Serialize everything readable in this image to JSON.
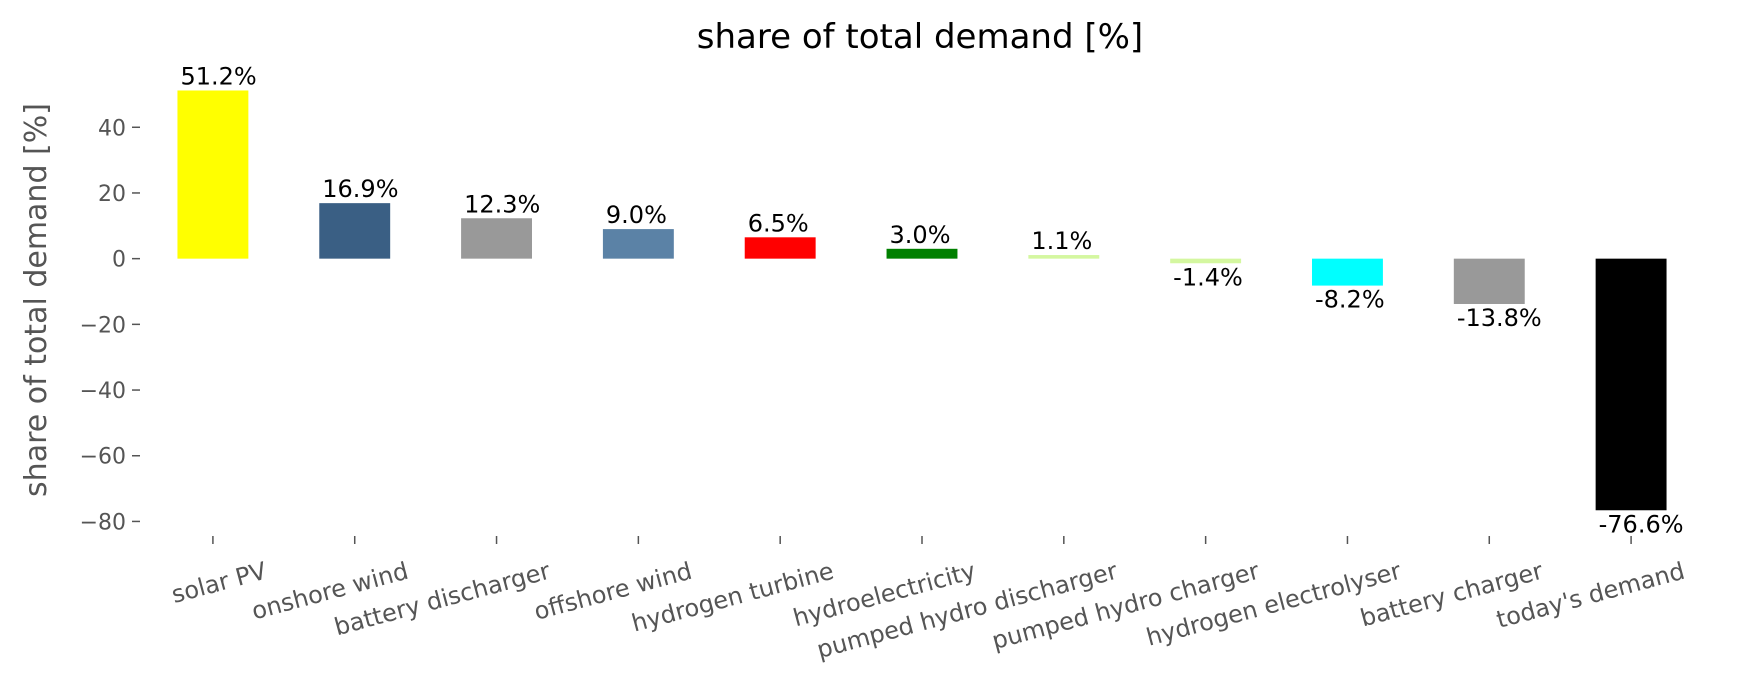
{
  "chart_data": {
    "type": "bar",
    "title": "share of total demand [%]",
    "ylabel": "share of total demand [%]",
    "categories": [
      "solar PV",
      "onshore wind",
      "battery discharger",
      "offshore wind",
      "hydrogen turbine",
      "hydroelectricity",
      "pumped hydro discharger",
      "pumped hydro charger",
      "hydrogen electrolyser",
      "battery charger",
      "today's demand"
    ],
    "values": [
      51.2,
      16.9,
      12.3,
      9.0,
      6.5,
      3.0,
      1.1,
      -1.4,
      -8.2,
      -13.8,
      -76.6
    ],
    "value_labels": [
      "51.2%",
      "16.9%",
      "12.3%",
      "9.0%",
      "6.5%",
      "3.0%",
      "1.1%",
      "-1.4%",
      "-8.2%",
      "-13.8%",
      "-76.6%"
    ],
    "colors": [
      "#ffff00",
      "#3a5f84",
      "#999999",
      "#5b82a6",
      "#ff0000",
      "#008000",
      "#d4f7a0",
      "#d4f7a0",
      "#00ffff",
      "#999999",
      "#000000"
    ],
    "ylim": [
      -82,
      55
    ],
    "yticks": [
      {
        "value": -80,
        "label": "−80"
      },
      {
        "value": -60,
        "label": "−60"
      },
      {
        "value": -40,
        "label": "−40"
      },
      {
        "value": -20,
        "label": "−20"
      },
      0,
      20,
      40
    ],
    "grid": false
  }
}
